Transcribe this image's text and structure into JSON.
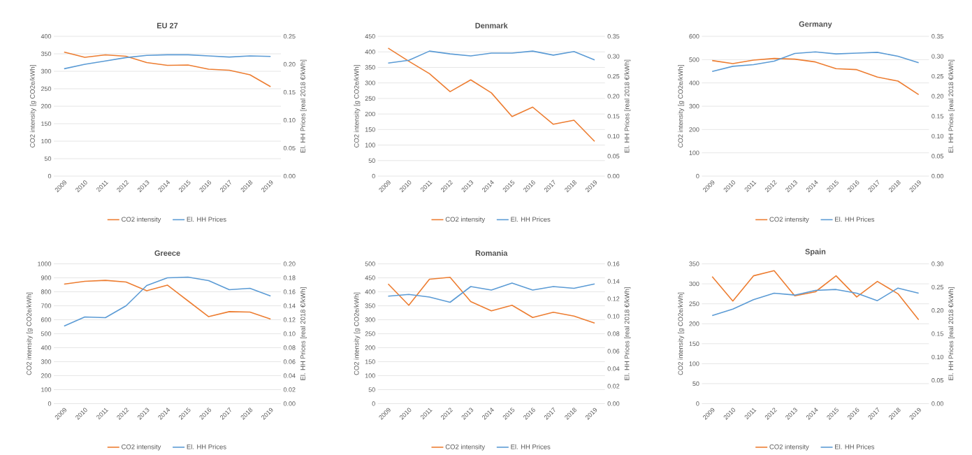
{
  "chart_data": [
    {
      "type": "line",
      "title": "EU 27",
      "categories": [
        "2009",
        "2010",
        "2011",
        "2012",
        "2013",
        "2014",
        "2015",
        "2016",
        "2017",
        "2018",
        "2019"
      ],
      "ylabel": "CO2 intensity [g CO2e/kWh]",
      "y2label": "El. HH Prices [real 2018 €/kWh]",
      "ylim": [
        0,
        400
      ],
      "yticks": [
        0,
        50,
        100,
        150,
        200,
        250,
        300,
        350,
        400
      ],
      "y2lim": [
        0,
        0.25
      ],
      "y2ticks": [
        {
          "value": 0,
          "label": "0.00"
        },
        {
          "value": 0.05,
          "label": "0.05"
        },
        {
          "value": 0.1,
          "label": "0.10"
        },
        {
          "value": 0.15,
          "label": "0.15"
        },
        {
          "value": 0.2,
          "label": "0.20"
        },
        {
          "value": 0.25,
          "label": "0.25"
        }
      ],
      "grid": "y",
      "legend": "bottom",
      "series": [
        {
          "name": "CO2 intensity",
          "color": "#ed7d31",
          "values": [
            355,
            340,
            347,
            343,
            325,
            317,
            318,
            306,
            303,
            290,
            256
          ]
        },
        {
          "name": "El. HH Prices",
          "color": "#5b9bd5",
          "axis": "y2",
          "values": [
            0.192,
            0.2,
            0.206,
            0.212,
            0.216,
            0.217,
            0.217,
            0.215,
            0.213,
            0.215,
            0.214
          ]
        }
      ]
    },
    {
      "type": "line",
      "title": "Denmark",
      "categories": [
        "2009",
        "2010",
        "2011",
        "2012",
        "2013",
        "2014",
        "2015",
        "2016",
        "2017",
        "2018",
        "2019"
      ],
      "ylabel": "CO2 intensity [g CO2e/kWh]",
      "y2label": "El. HH Prices [real 2018 €/kWh]",
      "ylim": [
        0,
        450
      ],
      "yticks": [
        0,
        50,
        100,
        150,
        200,
        250,
        300,
        350,
        400,
        450
      ],
      "y2lim": [
        0,
        0.35
      ],
      "y2ticks": [
        {
          "value": 0,
          "label": "0.00"
        },
        {
          "value": 0.05,
          "label": "0.05"
        },
        {
          "value": 0.1,
          "label": "0.10"
        },
        {
          "value": 0.15,
          "label": "0.15"
        },
        {
          "value": 0.2,
          "label": "0.20"
        },
        {
          "value": 0.25,
          "label": "0.25"
        },
        {
          "value": 0.3,
          "label": "0.30"
        },
        {
          "value": 0.35,
          "label": "0.35"
        }
      ],
      "grid": "y",
      "legend": "bottom",
      "series": [
        {
          "name": "CO2 intensity",
          "color": "#ed7d31",
          "values": [
            412,
            370,
            330,
            272,
            310,
            268,
            192,
            222,
            167,
            180,
            112
          ]
        },
        {
          "name": "El. HH Prices",
          "color": "#5b9bd5",
          "axis": "y2",
          "values": [
            0.283,
            0.29,
            0.313,
            0.306,
            0.301,
            0.308,
            0.308,
            0.313,
            0.303,
            0.312,
            0.291
          ]
        }
      ]
    },
    {
      "type": "line",
      "title": "Germany",
      "categories": [
        "2009",
        "2010",
        "2011",
        "2012",
        "2013",
        "2014",
        "2015",
        "2016",
        "2017",
        "2018",
        "2019"
      ],
      "ylabel": "CO2 intensity [g CO2e/kWh]",
      "y2label": "El. HH Prices [real 2018 €/kWh]",
      "ylim": [
        0,
        600
      ],
      "yticks": [
        0,
        100,
        200,
        300,
        400,
        500,
        600
      ],
      "y2lim": [
        0,
        0.35
      ],
      "y2ticks": [
        {
          "value": 0,
          "label": "0.00"
        },
        {
          "value": 0.05,
          "label": "0.05"
        },
        {
          "value": 0.1,
          "label": "0.10"
        },
        {
          "value": 0.15,
          "label": "0.15"
        },
        {
          "value": 0.2,
          "label": "0.20"
        },
        {
          "value": 0.25,
          "label": "0.25"
        },
        {
          "value": 0.3,
          "label": "0.30"
        },
        {
          "value": 0.35,
          "label": "0.35"
        }
      ],
      "grid": "y",
      "legend": "bottom",
      "series": [
        {
          "name": "CO2 intensity",
          "color": "#ed7d31",
          "values": [
            496,
            483,
            498,
            505,
            502,
            490,
            461,
            457,
            425,
            408,
            350
          ]
        },
        {
          "name": "El. HH Prices",
          "color": "#5b9bd5",
          "axis": "y2",
          "values": [
            0.262,
            0.275,
            0.279,
            0.288,
            0.307,
            0.311,
            0.306,
            0.308,
            0.31,
            0.3,
            0.284
          ]
        }
      ]
    },
    {
      "type": "line",
      "title": "Greece",
      "categories": [
        "2009",
        "2010",
        "2011",
        "2012",
        "2013",
        "2014",
        "2015",
        "2016",
        "2017",
        "2018",
        "2019"
      ],
      "ylabel": "CO2 intensity [g CO2e/kWh]",
      "y2label": "El. HH Prices [real 2018 €/kWh]",
      "ylim": [
        0,
        1000
      ],
      "yticks": [
        0,
        100,
        200,
        300,
        400,
        500,
        600,
        700,
        800,
        900,
        1000
      ],
      "y2lim": [
        0,
        0.2
      ],
      "y2ticks": [
        {
          "value": 0,
          "label": "0.00"
        },
        {
          "value": 0.02,
          "label": "0.02"
        },
        {
          "value": 0.04,
          "label": "0.04"
        },
        {
          "value": 0.06,
          "label": "0.06"
        },
        {
          "value": 0.08,
          "label": "0.08"
        },
        {
          "value": 0.1,
          "label": "0.10"
        },
        {
          "value": 0.12,
          "label": "0.12"
        },
        {
          "value": 0.14,
          "label": "0.14"
        },
        {
          "value": 0.16,
          "label": "0.16"
        },
        {
          "value": 0.18,
          "label": "0.18"
        },
        {
          "value": 0.2,
          "label": "0.20"
        }
      ],
      "grid": "y",
      "legend": "bottom",
      "series": [
        {
          "name": "CO2 intensity",
          "color": "#ed7d31",
          "values": [
            855,
            875,
            882,
            870,
            808,
            848,
            735,
            622,
            658,
            655,
            605
          ]
        },
        {
          "name": "El. HH Prices",
          "color": "#5b9bd5",
          "axis": "y2",
          "values": [
            0.111,
            0.124,
            0.123,
            0.14,
            0.169,
            0.18,
            0.181,
            0.176,
            0.163,
            0.165,
            0.154
          ]
        }
      ]
    },
    {
      "type": "line",
      "title": "Romania",
      "categories": [
        "2009",
        "2010",
        "2011",
        "2012",
        "2013",
        "2014",
        "2015",
        "2016",
        "2017",
        "2018",
        "2019"
      ],
      "ylabel": "CO2 intensity [g CO2e/kWh]",
      "y2label": "El. HH Prices [real 2018 €/kWh]",
      "ylim": [
        0,
        500
      ],
      "yticks": [
        0,
        50,
        100,
        150,
        200,
        250,
        300,
        350,
        400,
        450,
        500
      ],
      "y2lim": [
        0,
        0.16
      ],
      "y2ticks": [
        {
          "value": 0,
          "label": "0.00"
        },
        {
          "value": 0.02,
          "label": "0.02"
        },
        {
          "value": 0.04,
          "label": "0.04"
        },
        {
          "value": 0.06,
          "label": "0.06"
        },
        {
          "value": 0.08,
          "label": "0.08"
        },
        {
          "value": 0.1,
          "label": "0.10"
        },
        {
          "value": 0.12,
          "label": "0.12"
        },
        {
          "value": 0.14,
          "label": "0.14"
        },
        {
          "value": 0.16,
          "label": "0.16"
        }
      ],
      "grid": "y",
      "legend": "bottom",
      "series": [
        {
          "name": "CO2 intensity",
          "color": "#ed7d31",
          "values": [
            428,
            352,
            445,
            452,
            365,
            332,
            352,
            308,
            327,
            313,
            288
          ]
        },
        {
          "name": "El. HH Prices",
          "color": "#5b9bd5",
          "axis": "y2",
          "values": [
            0.123,
            0.125,
            0.122,
            0.116,
            0.134,
            0.13,
            0.138,
            0.13,
            0.134,
            0.132,
            0.137
          ]
        }
      ]
    },
    {
      "type": "line",
      "title": "Spain",
      "categories": [
        "2009",
        "2010",
        "2011",
        "2012",
        "2013",
        "2014",
        "2015",
        "2016",
        "2017",
        "2018",
        "2019"
      ],
      "ylabel": "CO2 intensity [g CO2e/kWh]",
      "y2label": "El. HH Prices [real 2018 €/kWh]",
      "ylim": [
        0,
        350
      ],
      "yticks": [
        0,
        50,
        100,
        150,
        200,
        250,
        300,
        350
      ],
      "y2lim": [
        0,
        0.3
      ],
      "y2ticks": [
        {
          "value": 0,
          "label": "0.00"
        },
        {
          "value": 0.05,
          "label": "0.05"
        },
        {
          "value": 0.1,
          "label": "0.10"
        },
        {
          "value": 0.15,
          "label": "0.15"
        },
        {
          "value": 0.2,
          "label": "0.20"
        },
        {
          "value": 0.25,
          "label": "0.25"
        },
        {
          "value": 0.3,
          "label": "0.30"
        }
      ],
      "grid": "y",
      "legend": "bottom",
      "series": [
        {
          "name": "CO2 intensity",
          "color": "#ed7d31",
          "values": [
            318,
            257,
            320,
            333,
            270,
            280,
            320,
            267,
            306,
            275,
            210
          ]
        },
        {
          "name": "El. HH Prices",
          "color": "#5b9bd5",
          "axis": "y2",
          "values": [
            0.189,
            0.203,
            0.223,
            0.237,
            0.233,
            0.243,
            0.245,
            0.237,
            0.221,
            0.248,
            0.237
          ]
        }
      ]
    }
  ]
}
